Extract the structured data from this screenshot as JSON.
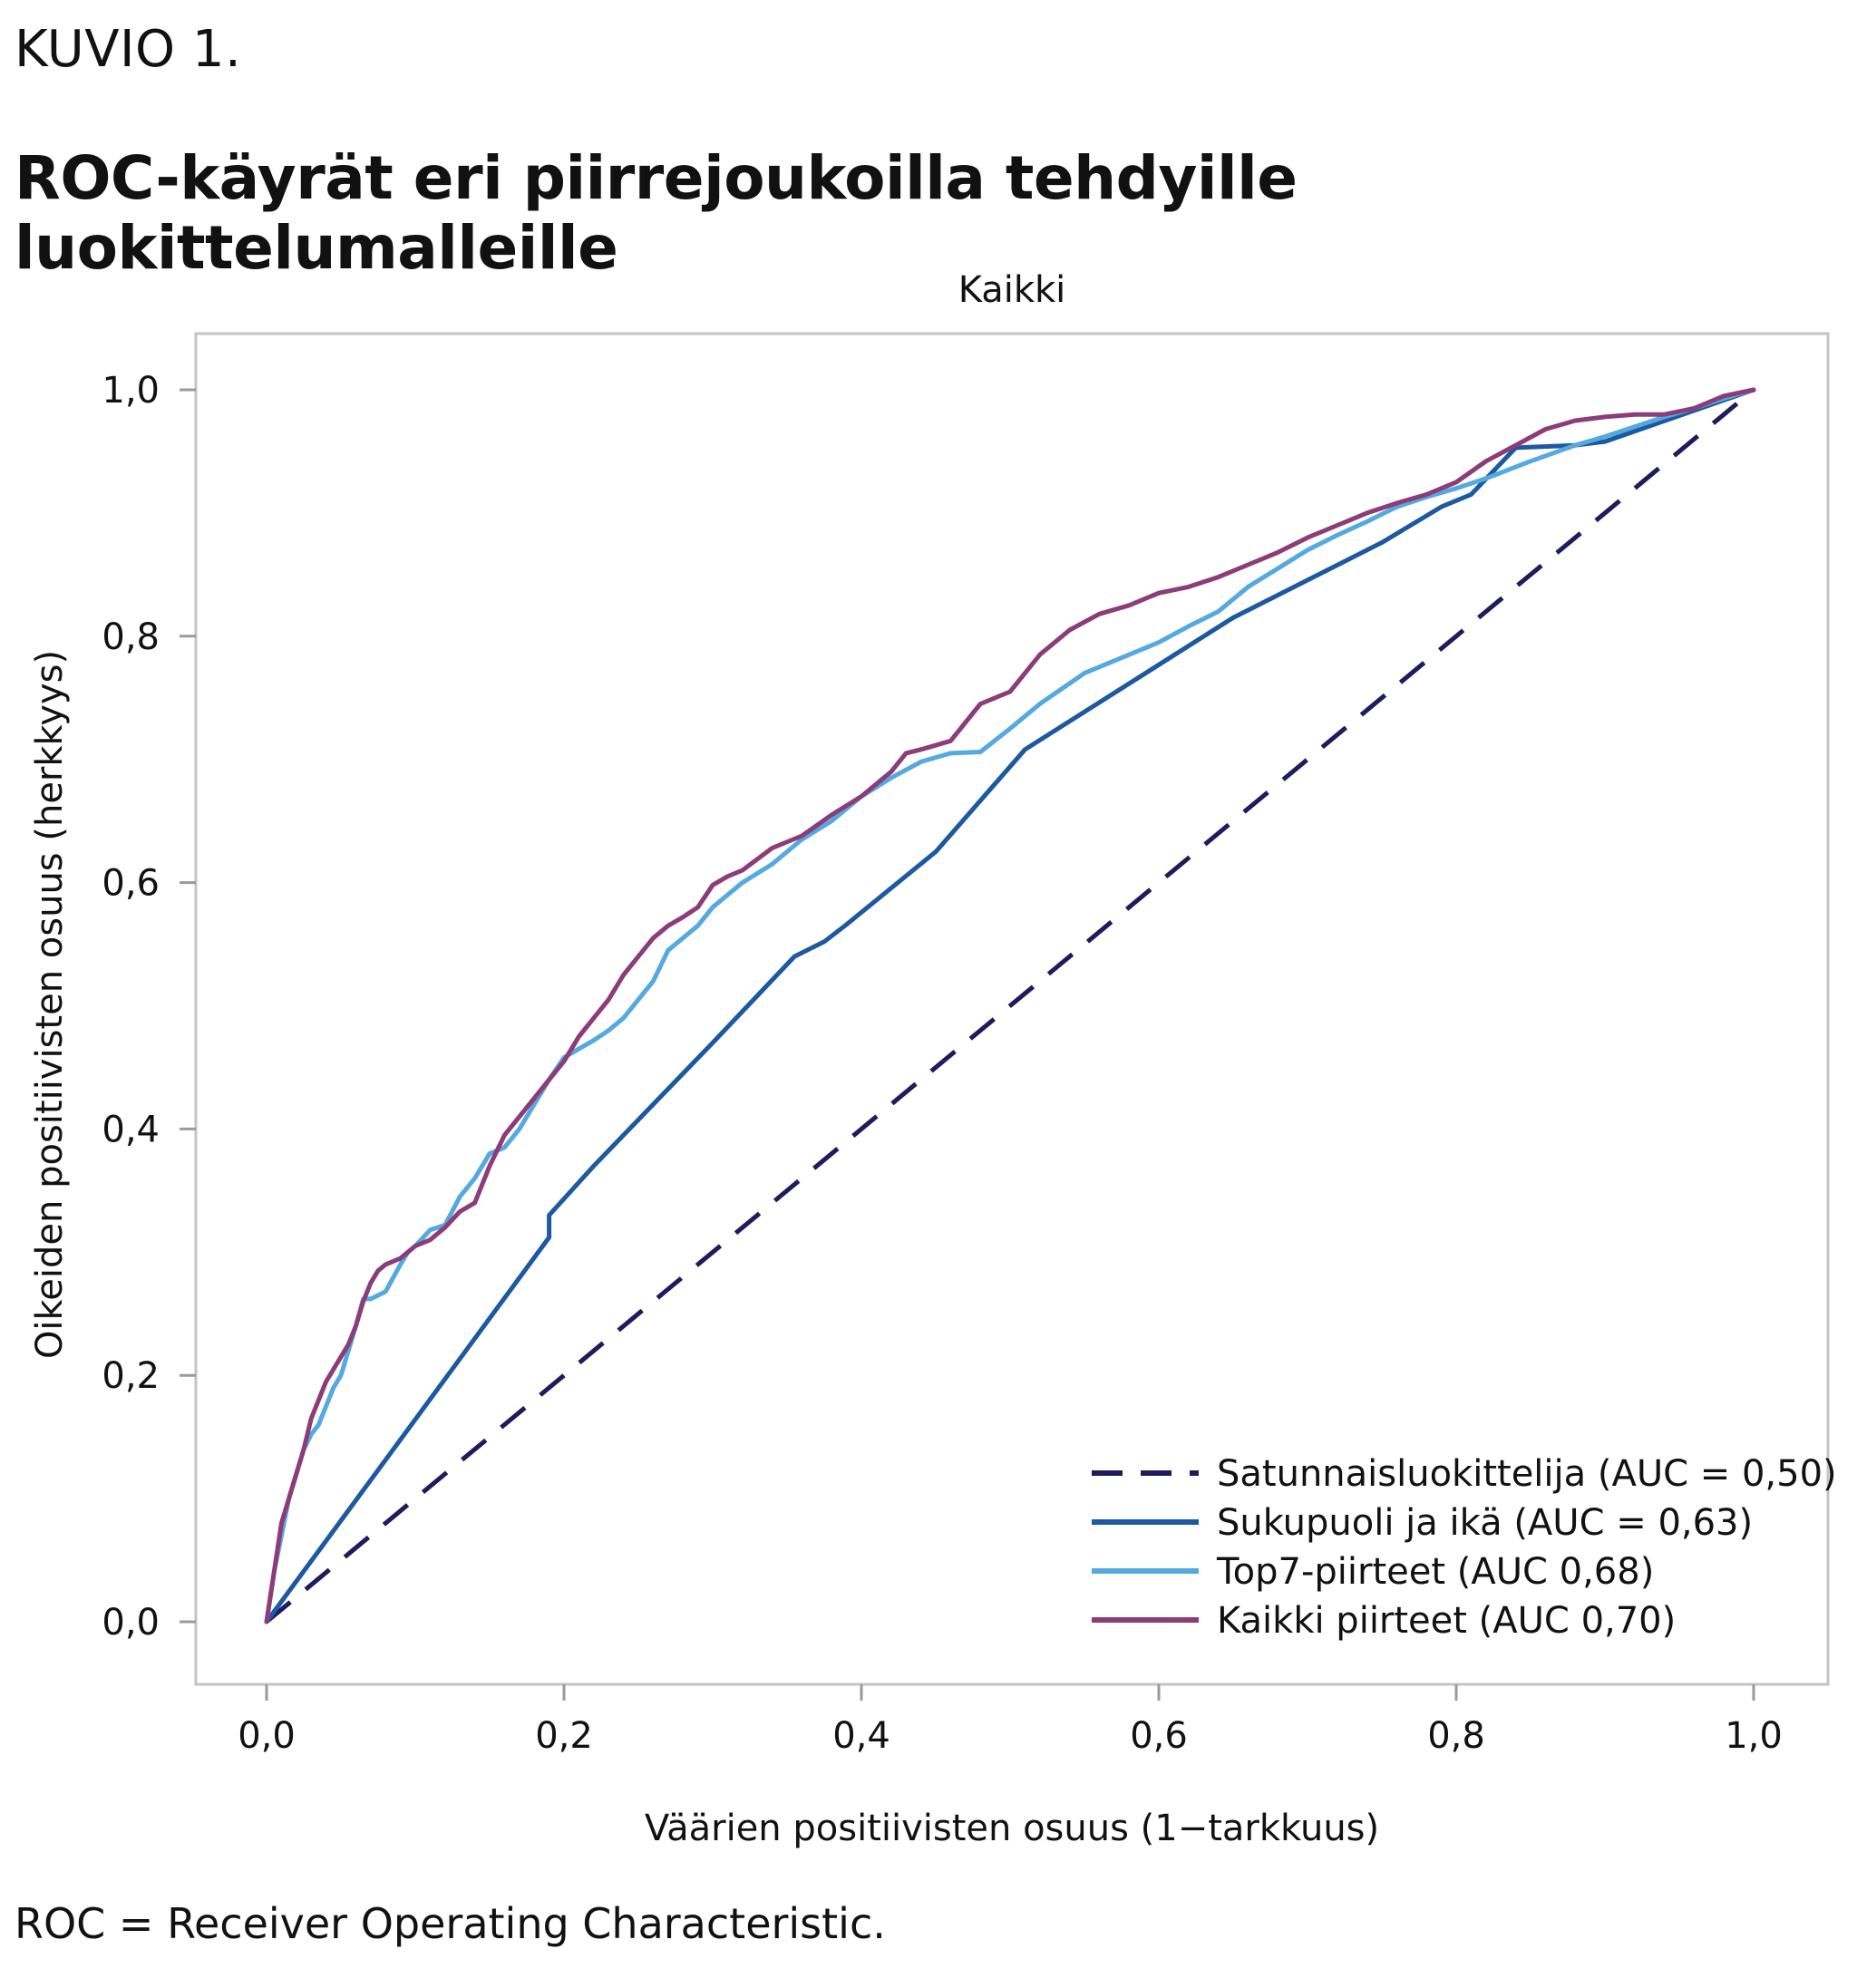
{
  "header": {
    "figure_label": "KUVIO 1.",
    "title": "ROC-käyrät eri piirrejoukoilla tehdyille luokittelumalleille"
  },
  "footnote": "ROC = Receiver Operating Characteristic.",
  "chart_data": {
    "type": "line",
    "subtitle": "Kaikki",
    "xlabel": "Väärien positiivisten osuus (1−tarkkuus)",
    "ylabel": "Oikeiden positiivisten osuus (herkkyys)",
    "xlim": [
      0,
      1
    ],
    "ylim": [
      0,
      1
    ],
    "xticks": [
      "0,0",
      "0,2",
      "0,4",
      "0,6",
      "0,8",
      "1,0"
    ],
    "yticks": [
      "0,0",
      "0,2",
      "0,4",
      "0,6",
      "0,8",
      "1,0"
    ],
    "grid": false,
    "legend_position": "bottom-right",
    "series": [
      {
        "name": "Satunnaisluokittelija (AUC = 0,50)",
        "color": "#1f1b5e",
        "dash": true,
        "x": [
          0,
          1
        ],
        "y": [
          0,
          1
        ]
      },
      {
        "name": "Sukupuoli ja ikä (AUC = 0,63)",
        "color": "#1c59a0",
        "dash": false,
        "x": [
          0,
          0.19,
          0.19,
          0.22,
          0.3,
          0.355,
          0.375,
          0.39,
          0.45,
          0.51,
          0.65,
          0.75,
          0.79,
          0.81,
          0.84,
          0.88,
          0.9,
          1.0
        ],
        "y": [
          0,
          0.312,
          0.33,
          0.37,
          0.47,
          0.54,
          0.552,
          0.566,
          0.625,
          0.708,
          0.815,
          0.876,
          0.905,
          0.915,
          0.953,
          0.955,
          0.958,
          1.0
        ]
      },
      {
        "name": "Top7-piirteet (AUC 0,68)",
        "color": "#54a9e0",
        "dash": false,
        "x": [
          0,
          0.005,
          0.01,
          0.015,
          0.02,
          0.025,
          0.03,
          0.035,
          0.04,
          0.045,
          0.05,
          0.055,
          0.06,
          0.065,
          0.07,
          0.075,
          0.08,
          0.09,
          0.095,
          0.1,
          0.11,
          0.12,
          0.13,
          0.14,
          0.15,
          0.16,
          0.17,
          0.18,
          0.19,
          0.2,
          0.21,
          0.22,
          0.23,
          0.24,
          0.25,
          0.26,
          0.27,
          0.28,
          0.29,
          0.3,
          0.32,
          0.34,
          0.36,
          0.38,
          0.4,
          0.42,
          0.44,
          0.46,
          0.48,
          0.5,
          0.52,
          0.55,
          0.58,
          0.6,
          0.62,
          0.64,
          0.66,
          0.68,
          0.7,
          0.72,
          0.74,
          0.76,
          0.78,
          0.8,
          0.82,
          0.85,
          0.88,
          0.9,
          0.92,
          0.94,
          0.96,
          0.98,
          1.0
        ],
        "y": [
          0,
          0.04,
          0.07,
          0.1,
          0.12,
          0.14,
          0.152,
          0.16,
          0.175,
          0.19,
          0.2,
          0.22,
          0.24,
          0.262,
          0.262,
          0.265,
          0.268,
          0.29,
          0.3,
          0.305,
          0.318,
          0.322,
          0.345,
          0.36,
          0.38,
          0.385,
          0.4,
          0.42,
          0.44,
          0.458,
          0.465,
          0.472,
          0.48,
          0.49,
          0.505,
          0.52,
          0.545,
          0.555,
          0.565,
          0.58,
          0.6,
          0.615,
          0.635,
          0.65,
          0.67,
          0.685,
          0.698,
          0.705,
          0.706,
          0.725,
          0.745,
          0.77,
          0.785,
          0.795,
          0.808,
          0.82,
          0.84,
          0.855,
          0.87,
          0.882,
          0.893,
          0.905,
          0.913,
          0.92,
          0.928,
          0.942,
          0.955,
          0.962,
          0.97,
          0.978,
          0.985,
          0.993,
          1.0
        ]
      },
      {
        "name": "Kaikki piirteet (AUC 0,70)",
        "color": "#8c3c78",
        "dash": false,
        "x": [
          0,
          0.01,
          0.015,
          0.02,
          0.025,
          0.03,
          0.035,
          0.04,
          0.045,
          0.05,
          0.055,
          0.06,
          0.065,
          0.07,
          0.075,
          0.08,
          0.09,
          0.1,
          0.11,
          0.12,
          0.13,
          0.14,
          0.15,
          0.16,
          0.17,
          0.18,
          0.19,
          0.2,
          0.21,
          0.22,
          0.23,
          0.24,
          0.25,
          0.26,
          0.27,
          0.28,
          0.29,
          0.3,
          0.31,
          0.32,
          0.34,
          0.36,
          0.38,
          0.4,
          0.42,
          0.43,
          0.44,
          0.46,
          0.48,
          0.5,
          0.52,
          0.54,
          0.56,
          0.58,
          0.6,
          0.62,
          0.64,
          0.66,
          0.68,
          0.7,
          0.72,
          0.74,
          0.76,
          0.78,
          0.8,
          0.82,
          0.84,
          0.86,
          0.88,
          0.9,
          0.92,
          0.94,
          0.96,
          0.98,
          1.0
        ],
        "y": [
          0,
          0.08,
          0.1,
          0.12,
          0.14,
          0.165,
          0.18,
          0.195,
          0.205,
          0.215,
          0.225,
          0.24,
          0.26,
          0.275,
          0.285,
          0.29,
          0.295,
          0.305,
          0.31,
          0.32,
          0.333,
          0.34,
          0.37,
          0.395,
          0.41,
          0.425,
          0.44,
          0.455,
          0.475,
          0.49,
          0.505,
          0.525,
          0.54,
          0.555,
          0.565,
          0.572,
          0.58,
          0.598,
          0.605,
          0.61,
          0.628,
          0.638,
          0.655,
          0.67,
          0.69,
          0.705,
          0.708,
          0.715,
          0.745,
          0.755,
          0.785,
          0.805,
          0.818,
          0.825,
          0.835,
          0.84,
          0.848,
          0.858,
          0.868,
          0.88,
          0.89,
          0.9,
          0.908,
          0.915,
          0.925,
          0.942,
          0.955,
          0.968,
          0.975,
          0.978,
          0.98,
          0.98,
          0.985,
          0.995,
          1.0
        ]
      }
    ]
  }
}
